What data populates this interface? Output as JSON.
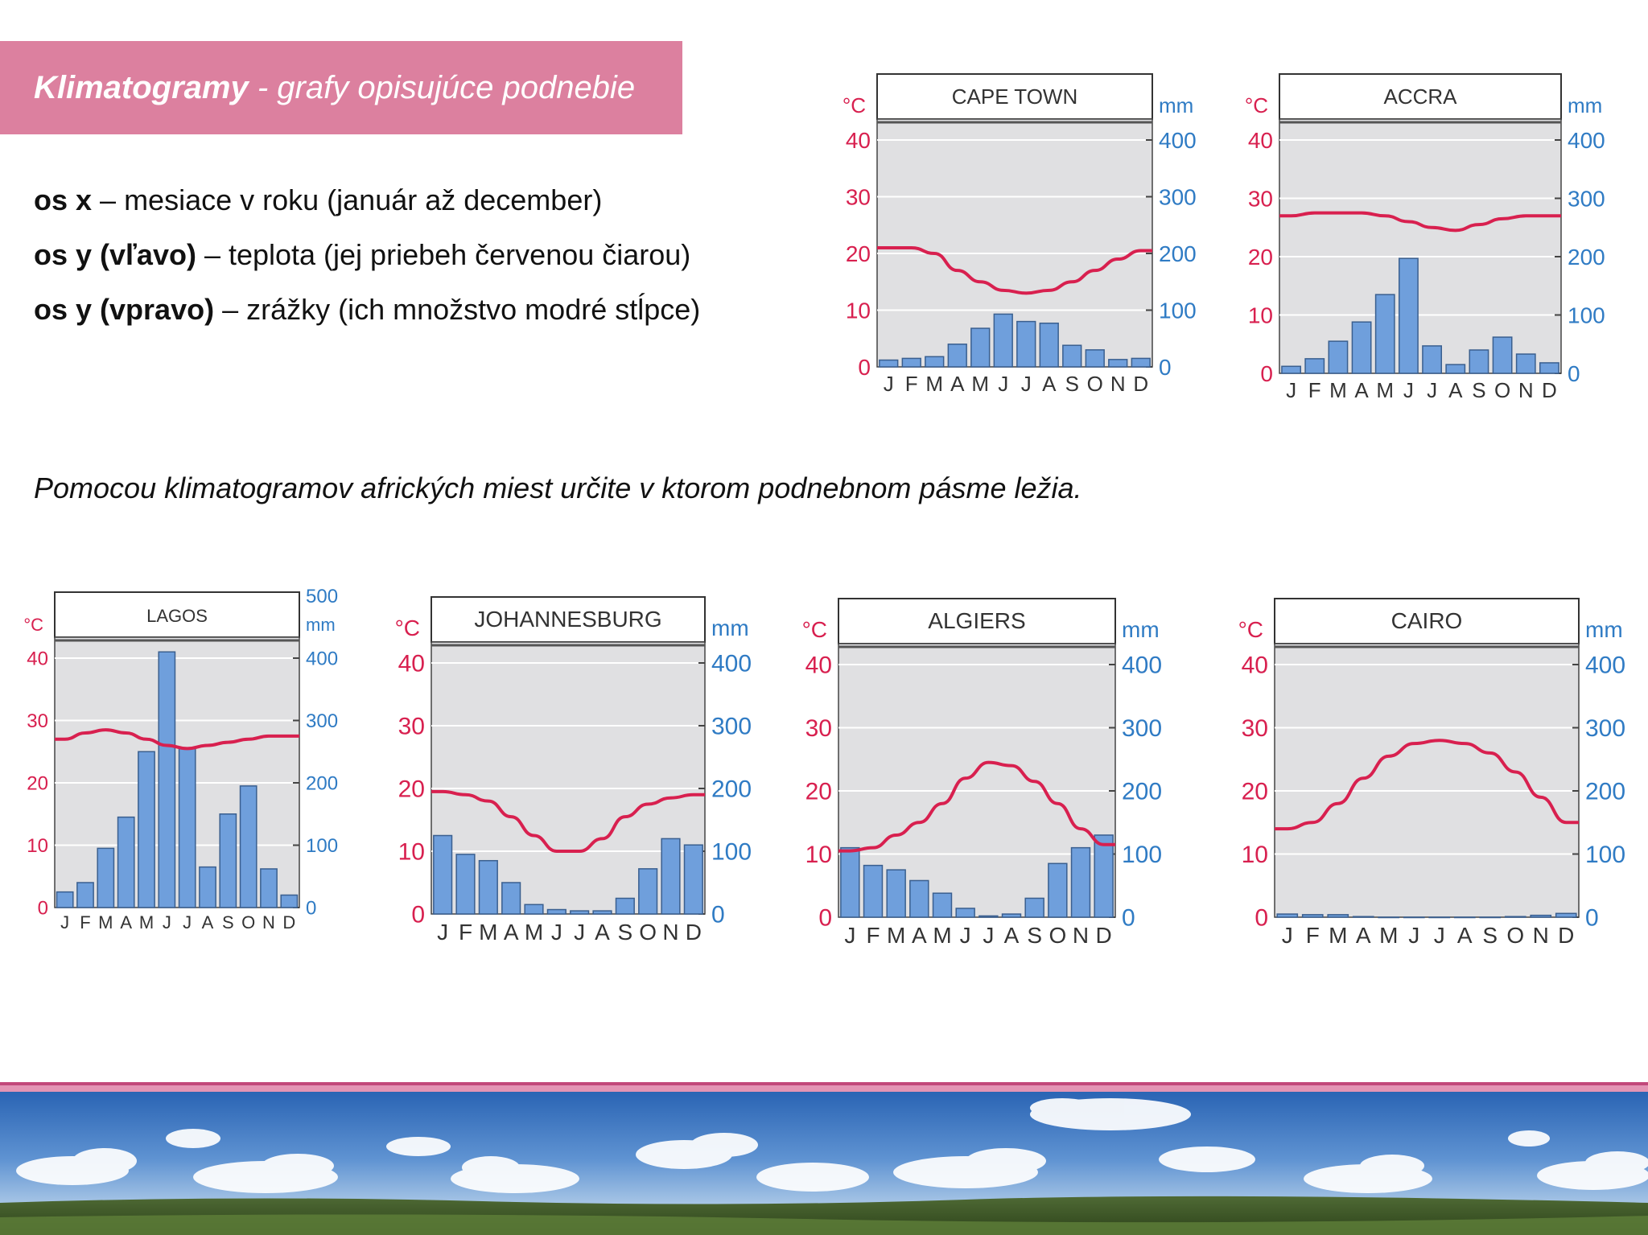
{
  "header": {
    "title_bold": "Klimatogramy",
    "title_rest": " - grafy opisujúce podnebie"
  },
  "axes_explanation": [
    {
      "label": "os x",
      "text": " – mesiace v roku (január až december)"
    },
    {
      "label": "os y (vľavo)",
      "text": " – teplota (jej priebeh červenou čiarou)"
    },
    {
      "label": "os y (vpravo)",
      "text": " – zrážky (ich množstvo modré stĺpce)"
    }
  ],
  "question": "Pomocou klimatogramov afrických miest určite v ktorom podnebnom pásme ležia.",
  "colors": {
    "temperature": "#d8204f",
    "precipitation": "#2f7bc4",
    "bar_fill": "#6f9fdc",
    "plot_bg": "#e0e0e2",
    "title_bar": "#dc809f"
  },
  "chart_data": [
    {
      "type": "bar",
      "title": "CAPE TOWN",
      "categories": [
        "J",
        "F",
        "M",
        "A",
        "M",
        "J",
        "J",
        "A",
        "S",
        "O",
        "N",
        "D"
      ],
      "ylabel_left": "°C",
      "ylabel_right": "mm",
      "temp_ticks": [
        "0",
        "10",
        "20",
        "30",
        "40"
      ],
      "precip_ticks": [
        "0",
        "100",
        "200",
        "300",
        "400"
      ],
      "temp_range": [
        0,
        40
      ],
      "precip_range": [
        0,
        400
      ],
      "series": [
        {
          "name": "temperature",
          "type": "line",
          "values": [
            21,
            21,
            20,
            17,
            15,
            13.5,
            13,
            13.5,
            15,
            17,
            19,
            20.5
          ]
        },
        {
          "name": "precipitation",
          "type": "bar",
          "values": [
            12,
            15,
            18,
            40,
            68,
            93,
            80,
            77,
            38,
            30,
            13,
            15
          ]
        }
      ]
    },
    {
      "type": "bar",
      "title": "ACCRA",
      "categories": [
        "J",
        "F",
        "M",
        "A",
        "M",
        "J",
        "J",
        "A",
        "S",
        "O",
        "N",
        "D"
      ],
      "ylabel_left": "°C",
      "ylabel_right": "mm",
      "temp_ticks": [
        "0",
        "10",
        "20",
        "30",
        "40"
      ],
      "precip_ticks": [
        "0",
        "100",
        "200",
        "300",
        "400"
      ],
      "temp_range": [
        0,
        40
      ],
      "precip_range": [
        0,
        400
      ],
      "series": [
        {
          "name": "temperature",
          "type": "line",
          "values": [
            27,
            27.5,
            27.5,
            27.5,
            27,
            26,
            25,
            24.5,
            25.5,
            26.5,
            27,
            27
          ]
        },
        {
          "name": "precipitation",
          "type": "bar",
          "values": [
            12,
            25,
            55,
            88,
            135,
            197,
            47,
            15,
            40,
            62,
            33,
            18
          ]
        }
      ]
    },
    {
      "type": "bar",
      "title": "LAGOS",
      "categories": [
        "J",
        "F",
        "M",
        "A",
        "M",
        "J",
        "J",
        "A",
        "S",
        "O",
        "N",
        "D"
      ],
      "ylabel_left": "°C",
      "ylabel_right": "mm",
      "temp_ticks": [
        "0",
        "10",
        "20",
        "30",
        "40"
      ],
      "precip_ticks": [
        "0",
        "100",
        "200",
        "300",
        "400",
        "500"
      ],
      "temp_range": [
        0,
        40
      ],
      "precip_range": [
        0,
        400
      ],
      "series": [
        {
          "name": "temperature",
          "type": "line",
          "values": [
            27,
            28,
            28.5,
            28,
            27,
            26,
            25.5,
            26,
            26.5,
            27,
            27.5,
            27.5
          ]
        },
        {
          "name": "precipitation",
          "type": "bar",
          "values": [
            25,
            40,
            95,
            145,
            250,
            410,
            255,
            65,
            150,
            195,
            62,
            20
          ]
        }
      ]
    },
    {
      "type": "bar",
      "title": "JOHANNESBURG",
      "categories": [
        "J",
        "F",
        "M",
        "A",
        "M",
        "J",
        "J",
        "A",
        "S",
        "O",
        "N",
        "D"
      ],
      "ylabel_left": "°C",
      "ylabel_right": "mm",
      "temp_ticks": [
        "0",
        "10",
        "20",
        "30",
        "40"
      ],
      "precip_ticks": [
        "0",
        "100",
        "200",
        "300",
        "400"
      ],
      "temp_range": [
        0,
        40
      ],
      "precip_range": [
        0,
        400
      ],
      "series": [
        {
          "name": "temperature",
          "type": "line",
          "values": [
            19.5,
            19,
            18,
            15.5,
            12.5,
            10,
            10,
            12,
            15.5,
            17.5,
            18.5,
            19
          ]
        },
        {
          "name": "precipitation",
          "type": "bar",
          "values": [
            125,
            95,
            85,
            50,
            15,
            7,
            5,
            5,
            25,
            72,
            120,
            110
          ]
        }
      ]
    },
    {
      "type": "bar",
      "title": "ALGIERS",
      "categories": [
        "J",
        "F",
        "M",
        "A",
        "M",
        "J",
        "J",
        "A",
        "S",
        "O",
        "N",
        "D"
      ],
      "ylabel_left": "°C",
      "ylabel_right": "mm",
      "temp_ticks": [
        "0",
        "10",
        "20",
        "30",
        "40"
      ],
      "precip_ticks": [
        "0",
        "100",
        "200",
        "300",
        "400"
      ],
      "temp_range": [
        0,
        40
      ],
      "precip_range": [
        0,
        400
      ],
      "series": [
        {
          "name": "temperature",
          "type": "line",
          "values": [
            10.5,
            11,
            13,
            15,
            18,
            22,
            24.5,
            24,
            21.5,
            18,
            14,
            11.5
          ]
        },
        {
          "name": "precipitation",
          "type": "bar",
          "values": [
            110,
            82,
            75,
            58,
            38,
            14,
            2,
            5,
            30,
            85,
            110,
            130
          ]
        }
      ]
    },
    {
      "type": "bar",
      "title": "CAIRO",
      "categories": [
        "J",
        "F",
        "M",
        "A",
        "M",
        "J",
        "J",
        "A",
        "S",
        "O",
        "N",
        "D"
      ],
      "ylabel_left": "°C",
      "ylabel_right": "mm",
      "temp_ticks": [
        "0",
        "10",
        "20",
        "30",
        "40"
      ],
      "precip_ticks": [
        "0",
        "100",
        "200",
        "300",
        "400"
      ],
      "temp_range": [
        0,
        40
      ],
      "precip_range": [
        0,
        400
      ],
      "series": [
        {
          "name": "temperature",
          "type": "line",
          "values": [
            14,
            15,
            18,
            22,
            25.5,
            27.5,
            28,
            27.5,
            26,
            23,
            19,
            15
          ]
        },
        {
          "name": "precipitation",
          "type": "bar",
          "values": [
            5,
            4,
            4,
            1,
            0,
            0,
            0,
            0,
            0,
            1,
            3,
            6
          ]
        }
      ]
    }
  ]
}
